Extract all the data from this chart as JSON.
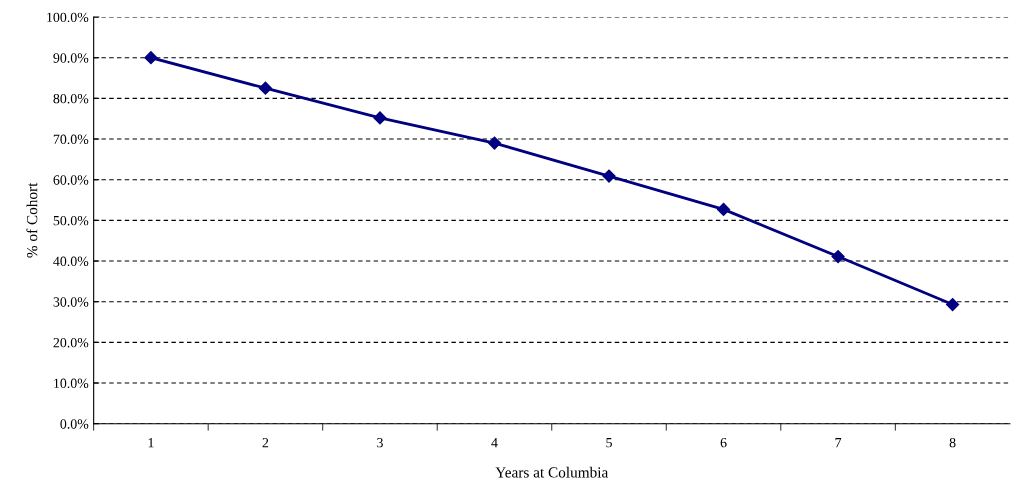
{
  "chart_data": {
    "type": "line",
    "xlabel": "Years at Columbia",
    "ylabel": "% of Cohort",
    "categories": [
      "1",
      "2",
      "3",
      "4",
      "5",
      "6",
      "7",
      "8"
    ],
    "series": [
      {
        "color": "#000080",
        "values": [
          90.0,
          82.5,
          75.2,
          69.0,
          60.9,
          52.7,
          41.1,
          29.3
        ]
      }
    ],
    "ylim": [
      0,
      100
    ],
    "yticks": [
      {
        "value": 0,
        "label": "0.0%"
      },
      {
        "value": 10,
        "label": "10.0%"
      },
      {
        "value": 20,
        "label": "20.0%"
      },
      {
        "value": 30,
        "label": "30.0%"
      },
      {
        "value": 40,
        "label": "40.0%"
      },
      {
        "value": 50,
        "label": "50.0%"
      },
      {
        "value": 60,
        "label": "60.0%"
      },
      {
        "value": 70,
        "label": "70.0%"
      },
      {
        "value": 80,
        "label": "80.0%"
      },
      {
        "value": 90,
        "label": "90.0%"
      },
      {
        "value": 100,
        "label": "100.0%"
      }
    ],
    "grid": "y",
    "marker": "diamond",
    "line_style": "solid",
    "legend": false
  }
}
